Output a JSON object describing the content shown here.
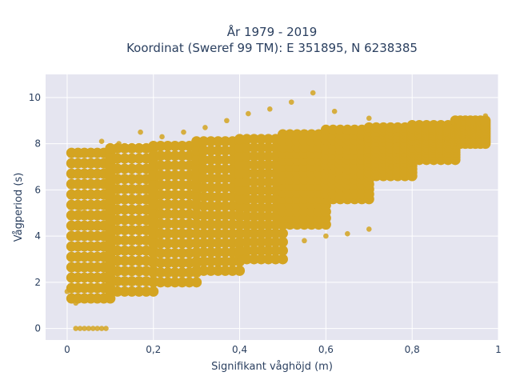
{
  "chart_data": {
    "type": "scatter",
    "title_lines": [
      "År 1979 - 2019",
      "Koordinat (Sweref 99 TM): E 351895, N 6238385"
    ],
    "xlabel": "Signifikant våghöjd (m)",
    "ylabel": "Vågperiod (s)",
    "xlim": [
      -0.05,
      1.0
    ],
    "ylim": [
      -0.5,
      11
    ],
    "x_ticks": [
      {
        "value": 0,
        "label": "0"
      },
      {
        "value": 0.2,
        "label": "0,2"
      },
      {
        "value": 0.4,
        "label": "0,4"
      },
      {
        "value": 0.6,
        "label": "0,6"
      },
      {
        "value": 0.8,
        "label": "0,8"
      },
      {
        "value": 1.0,
        "label": "1"
      }
    ],
    "y_ticks": [
      {
        "value": 0,
        "label": "0"
      },
      {
        "value": 2,
        "label": "2"
      },
      {
        "value": 4,
        "label": "4"
      },
      {
        "value": 6,
        "label": "6"
      },
      {
        "value": 8,
        "label": "8"
      },
      {
        "value": 10,
        "label": "10"
      }
    ],
    "grid": true,
    "background": "#e5e5f0",
    "marker_color": "#d4a421",
    "series": [
      {
        "points": [
          [
            0.0,
            1.6
          ],
          [
            0.01,
            1.2
          ],
          [
            0.02,
            1.1
          ],
          [
            0.03,
            5.2
          ],
          [
            0.03,
            7.5
          ],
          [
            0.05,
            7.2
          ],
          [
            0.07,
            7.6
          ],
          [
            0.08,
            8.1
          ],
          [
            0.1,
            1.3
          ],
          [
            0.12,
            8.0
          ],
          [
            0.15,
            1.6
          ],
          [
            0.17,
            8.5
          ],
          [
            0.2,
            1.8
          ],
          [
            0.22,
            8.3
          ],
          [
            0.25,
            2.2
          ],
          [
            0.27,
            8.5
          ],
          [
            0.3,
            2.4
          ],
          [
            0.32,
            8.7
          ],
          [
            0.35,
            2.7
          ],
          [
            0.37,
            9.0
          ],
          [
            0.4,
            3.0
          ],
          [
            0.42,
            9.3
          ],
          [
            0.45,
            3.3
          ],
          [
            0.47,
            9.5
          ],
          [
            0.5,
            3.6
          ],
          [
            0.52,
            9.8
          ],
          [
            0.55,
            3.8
          ],
          [
            0.57,
            10.2
          ],
          [
            0.6,
            4.0
          ],
          [
            0.62,
            9.4
          ],
          [
            0.65,
            4.1
          ],
          [
            0.7,
            9.1
          ],
          [
            0.7,
            4.3
          ],
          [
            0.73,
            8.3
          ],
          [
            0.75,
            7.0
          ],
          [
            0.78,
            7.5
          ],
          [
            0.8,
            7.1
          ],
          [
            0.82,
            8.1
          ],
          [
            0.85,
            7.8
          ],
          [
            0.88,
            8.2
          ],
          [
            0.9,
            8.5
          ],
          [
            0.92,
            8.9
          ],
          [
            0.95,
            9.0
          ],
          [
            0.97,
            9.2
          ],
          [
            0.02,
            0.0
          ],
          [
            0.03,
            0.0
          ],
          [
            0.04,
            0.0
          ],
          [
            0.05,
            0.0
          ],
          [
            0.06,
            0.0
          ],
          [
            0.07,
            0.0
          ],
          [
            0.08,
            0.0
          ],
          [
            0.09,
            0.0
          ]
        ],
        "dense_bands": [
          {
            "x": [
              0.01,
              0.1
            ],
            "y": [
              1.3,
              7.6
            ]
          },
          {
            "x": [
              0.1,
              0.2
            ],
            "y": [
              1.6,
              7.8
            ]
          },
          {
            "x": [
              0.2,
              0.3
            ],
            "y": [
              2.0,
              7.9
            ]
          },
          {
            "x": [
              0.3,
              0.4
            ],
            "y": [
              2.5,
              8.1
            ]
          },
          {
            "x": [
              0.4,
              0.5
            ],
            "y": [
              3.0,
              8.2
            ]
          },
          {
            "x": [
              0.5,
              0.6
            ],
            "y": [
              4.5,
              8.4
            ]
          },
          {
            "x": [
              0.6,
              0.7
            ],
            "y": [
              5.6,
              8.6
            ]
          },
          {
            "x": [
              0.7,
              0.8
            ],
            "y": [
              6.6,
              8.7
            ]
          },
          {
            "x": [
              0.8,
              0.9
            ],
            "y": [
              7.3,
              8.8
            ]
          },
          {
            "x": [
              0.9,
              0.97
            ],
            "y": [
              8.0,
              9.0
            ]
          }
        ]
      }
    ]
  }
}
